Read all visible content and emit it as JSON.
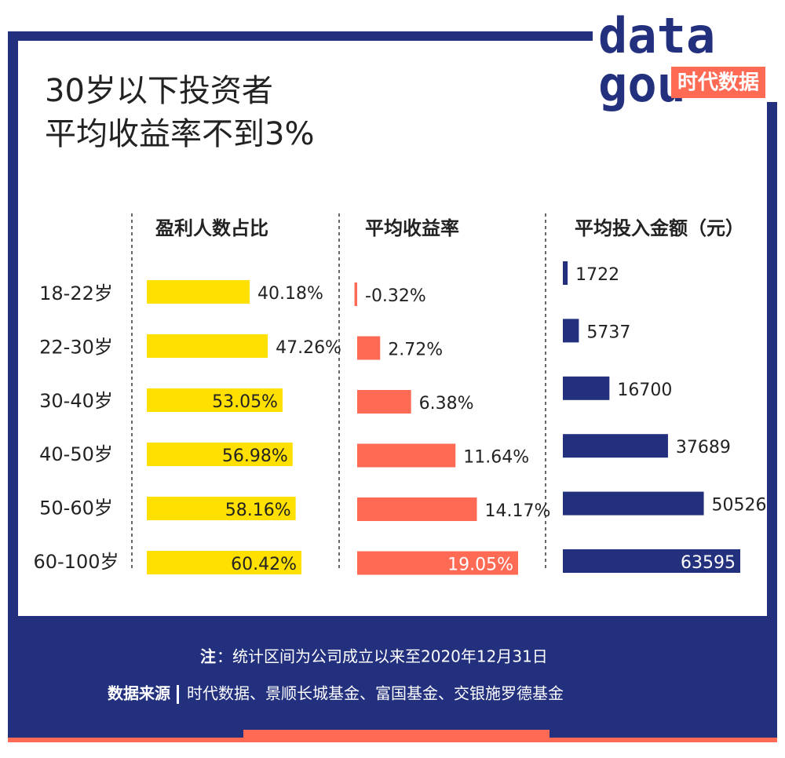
{
  "logo": {
    "top": "data",
    "bottom": "gou",
    "badge": "时代数据"
  },
  "chart_data": {
    "type": "bar",
    "layout": "panels",
    "title": [
      "30岁以下投资者",
      "平均收益率不到3%"
    ],
    "categories": [
      "18-22岁",
      "22-30岁",
      "30-40岁",
      "40-50岁",
      "50-60岁",
      "60-100岁"
    ],
    "series": [
      {
        "name": "盈利人数占比",
        "color": "#ffe000",
        "values": [
          40.18,
          47.26,
          53.05,
          56.98,
          58.16,
          60.42
        ],
        "value_labels": [
          "40.18%",
          "47.26%",
          "53.05%",
          "56.98%",
          "58.16%",
          "60.42%"
        ]
      },
      {
        "name": "平均收益率",
        "color": "#ff6a55",
        "values": [
          -0.32,
          2.72,
          6.38,
          11.64,
          14.17,
          19.05
        ],
        "value_labels": [
          "-0.32%",
          "2.72%",
          "6.38%",
          "11.64%",
          "14.17%",
          "19.05%"
        ]
      },
      {
        "name": "平均投入金额（元）",
        "color": "#22307e",
        "values": [
          1722,
          5737,
          16700,
          37689,
          50526,
          63595
        ]
      }
    ]
  },
  "footer": {
    "note_label": "注",
    "note_text": "：统计区间为公司成立以来至2020年12月31日",
    "source_label": "数据来源",
    "source_text": "时代数据、景顺长城基金、富国基金、交银施罗德基金"
  }
}
